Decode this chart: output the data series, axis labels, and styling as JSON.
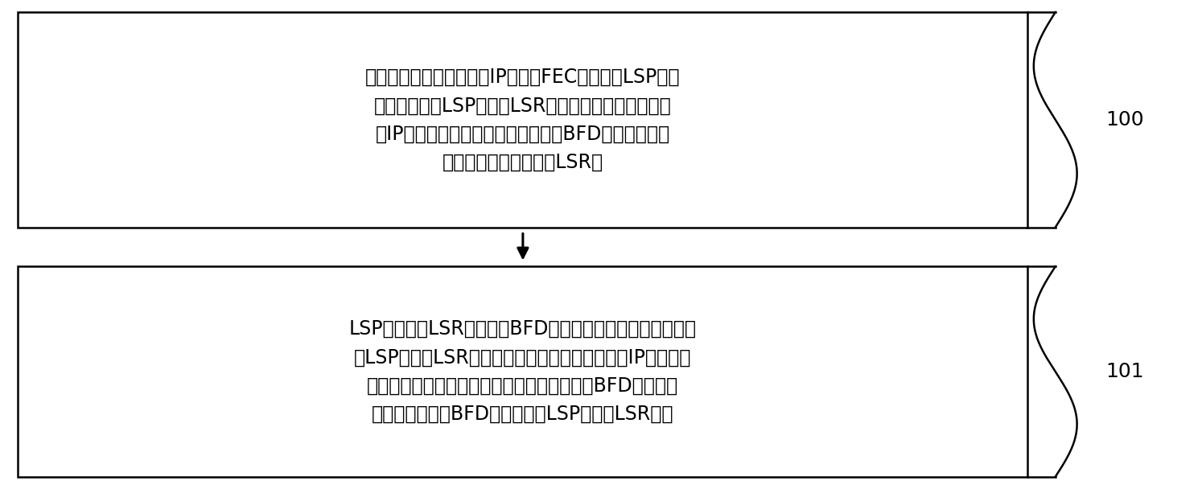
{
  "box1_lines": [
    "在对目的地址为同一网段IP地址的FEC所对应的LSP进行",
    "故障检测时，LSP的入口LSR在本地路由表中查询与网",
    "段IP地址对应的下一跳信息，并发送BFD报文至与该下",
    "一跳信息对应的下一跳LSR中"
  ],
  "box2_lines": [
    "LSP中的任一LSR接收到该BFD报文后，若识别到自身并非为",
    "该LSP的出口LSR，则在本地路由表中查询与网段IP地址对应",
    "的下一跳信息，并按照查询到的下一跳信息对BFD报文进行",
    "转发，直至将该BFD报文发送至LSP的出口LSR为止"
  ],
  "label1": "100",
  "label2": "101",
  "bg_color": "#ffffff",
  "box_edge_color": "#000000",
  "text_color": "#000000",
  "arrow_color": "#000000",
  "font_size": 17,
  "label_font_size": 18
}
